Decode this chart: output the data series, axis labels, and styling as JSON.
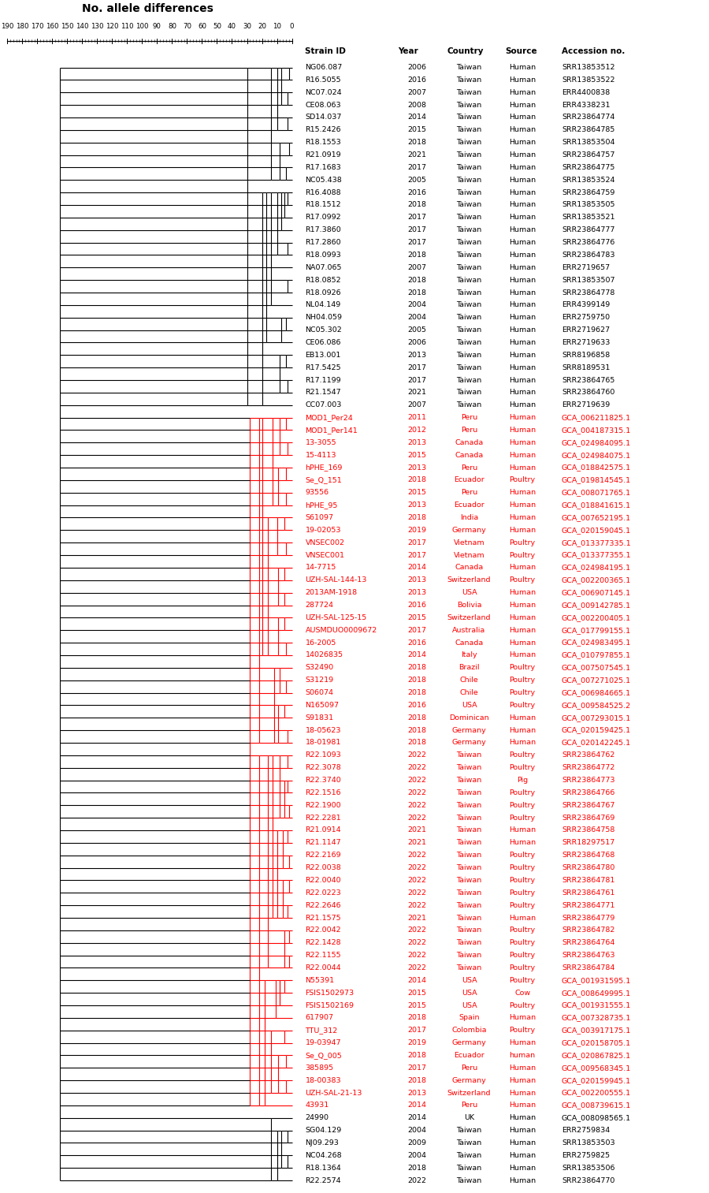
{
  "title": "No. allele differences",
  "scale_values": [
    190,
    180,
    170,
    160,
    150,
    140,
    130,
    120,
    110,
    100,
    90,
    80,
    70,
    60,
    50,
    40,
    30,
    20,
    10,
    0
  ],
  "col_headers": [
    "Strain ID",
    "Year",
    "Country",
    "Source",
    "Accession no."
  ],
  "strains": [
    {
      "id": "NG06.087",
      "year": "2006",
      "country": "Taiwan",
      "source": "Human",
      "accession": "SRR13853512",
      "red": false
    },
    {
      "id": "R16.5055",
      "year": "2016",
      "country": "Taiwan",
      "source": "Human",
      "accession": "SRR13853522",
      "red": false
    },
    {
      "id": "NC07.024",
      "year": "2007",
      "country": "Taiwan",
      "source": "Human",
      "accession": "ERR4400838",
      "red": false
    },
    {
      "id": "CE08.063",
      "year": "2008",
      "country": "Taiwan",
      "source": "Human",
      "accession": "ERR4338231",
      "red": false
    },
    {
      "id": "SD14.037",
      "year": "2014",
      "country": "Taiwan",
      "source": "Human",
      "accession": "SRR23864774",
      "red": false
    },
    {
      "id": "R15.2426",
      "year": "2015",
      "country": "Taiwan",
      "source": "Human",
      "accession": "SRR23864785",
      "red": false
    },
    {
      "id": "R18.1553",
      "year": "2018",
      "country": "Taiwan",
      "source": "Human",
      "accession": "SRR13853504",
      "red": false
    },
    {
      "id": "R21.0919",
      "year": "2021",
      "country": "Taiwan",
      "source": "Human",
      "accession": "SRR23864757",
      "red": false
    },
    {
      "id": "R17.1683",
      "year": "2017",
      "country": "Taiwan",
      "source": "Human",
      "accession": "SRR23864775",
      "red": false
    },
    {
      "id": "NC05.438",
      "year": "2005",
      "country": "Taiwan",
      "source": "Human",
      "accession": "SRR13853524",
      "red": false
    },
    {
      "id": "R16.4088",
      "year": "2016",
      "country": "Taiwan",
      "source": "Human",
      "accession": "SRR23864759",
      "red": false
    },
    {
      "id": "R18.1512",
      "year": "2018",
      "country": "Taiwan",
      "source": "Human",
      "accession": "SRR13853505",
      "red": false
    },
    {
      "id": "R17.0992",
      "year": "2017",
      "country": "Taiwan",
      "source": "Human",
      "accession": "SRR13853521",
      "red": false
    },
    {
      "id": "R17.3860",
      "year": "2017",
      "country": "Taiwan",
      "source": "Human",
      "accession": "SRR23864777",
      "red": false
    },
    {
      "id": "R17.2860",
      "year": "2017",
      "country": "Taiwan",
      "source": "Human",
      "accession": "SRR23864776",
      "red": false
    },
    {
      "id": "R18.0993",
      "year": "2018",
      "country": "Taiwan",
      "source": "Human",
      "accession": "SRR23864783",
      "red": false
    },
    {
      "id": "NA07.065",
      "year": "2007",
      "country": "Taiwan",
      "source": "Human",
      "accession": "ERR2719657",
      "red": false
    },
    {
      "id": "R18.0852",
      "year": "2018",
      "country": "Taiwan",
      "source": "Human",
      "accession": "SRR13853507",
      "red": false
    },
    {
      "id": "R18.0926",
      "year": "2018",
      "country": "Taiwan",
      "source": "Human",
      "accession": "SRR23864778",
      "red": false
    },
    {
      "id": "NL04.149",
      "year": "2004",
      "country": "Taiwan",
      "source": "Human",
      "accession": "ERR4399149",
      "red": false
    },
    {
      "id": "NH04.059",
      "year": "2004",
      "country": "Taiwan",
      "source": "Human",
      "accession": "ERR2759750",
      "red": false
    },
    {
      "id": "NC05.302",
      "year": "2005",
      "country": "Taiwan",
      "source": "Human",
      "accession": "ERR2719627",
      "red": false
    },
    {
      "id": "CE06.086",
      "year": "2006",
      "country": "Taiwan",
      "source": "Human",
      "accession": "ERR2719633",
      "red": false
    },
    {
      "id": "EB13.001",
      "year": "2013",
      "country": "Taiwan",
      "source": "Human",
      "accession": "SRR8196858",
      "red": false
    },
    {
      "id": "R17.5425",
      "year": "2017",
      "country": "Taiwan",
      "source": "Human",
      "accession": "SRR8189531",
      "red": false
    },
    {
      "id": "R17.1199",
      "year": "2017",
      "country": "Taiwan",
      "source": "Human",
      "accession": "SRR23864765",
      "red": false
    },
    {
      "id": "R21.1547",
      "year": "2021",
      "country": "Taiwan",
      "source": "Human",
      "accession": "SRR23864760",
      "red": false
    },
    {
      "id": "CC07.003",
      "year": "2007",
      "country": "Taiwan",
      "source": "Human",
      "accession": "ERR2719639",
      "red": false
    },
    {
      "id": "MOD1_Per24",
      "year": "2011",
      "country": "Peru",
      "source": "Human",
      "accession": "GCA_006211825.1",
      "red": true
    },
    {
      "id": "MOD1_Per141",
      "year": "2012",
      "country": "Peru",
      "source": "Human",
      "accession": "GCA_004187315.1",
      "red": true
    },
    {
      "id": "13-3055",
      "year": "2013",
      "country": "Canada",
      "source": "Human",
      "accession": "GCA_024984095.1",
      "red": true
    },
    {
      "id": "15-4113",
      "year": "2015",
      "country": "Canada",
      "source": "Human",
      "accession": "GCA_024984075.1",
      "red": true
    },
    {
      "id": "hPHE_169",
      "year": "2013",
      "country": "Peru",
      "source": "Human",
      "accession": "GCA_018842575.1",
      "red": true
    },
    {
      "id": "Se_Q_151",
      "year": "2018",
      "country": "Ecuador",
      "source": "Poultry",
      "accession": "GCA_019814545.1",
      "red": true
    },
    {
      "id": "93556",
      "year": "2015",
      "country": "Peru",
      "source": "Human",
      "accession": "GCA_008071765.1",
      "red": true
    },
    {
      "id": "hPHE_95",
      "year": "2013",
      "country": "Ecuador",
      "source": "Human",
      "accession": "GCA_018841615.1",
      "red": true
    },
    {
      "id": "S61097",
      "year": "2018",
      "country": "India",
      "source": "Human",
      "accession": "GCA_007652195.1",
      "red": true
    },
    {
      "id": "19-02053",
      "year": "2019",
      "country": "Germany",
      "source": "Human",
      "accession": "GCA_020159045.1",
      "red": true
    },
    {
      "id": "VNSEC002",
      "year": "2017",
      "country": "Vietnam",
      "source": "Poultry",
      "accession": "GCA_013377335.1",
      "red": true
    },
    {
      "id": "VNSEC001",
      "year": "2017",
      "country": "Vietnam",
      "source": "Poultry",
      "accession": "GCA_013377355.1",
      "red": true
    },
    {
      "id": "14-7715",
      "year": "2014",
      "country": "Canada",
      "source": "Human",
      "accession": "GCA_024984195.1",
      "red": true
    },
    {
      "id": "UZH-SAL-144-13",
      "year": "2013",
      "country": "Switzerland",
      "source": "Poultry",
      "accession": "GCA_002200365.1",
      "red": true
    },
    {
      "id": "2013AM-1918",
      "year": "2013",
      "country": "USA",
      "source": "Human",
      "accession": "GCA_006907145.1",
      "red": true
    },
    {
      "id": "287724",
      "year": "2016",
      "country": "Bolivia",
      "source": "Human",
      "accession": "GCA_009142785.1",
      "red": true
    },
    {
      "id": "UZH-SAL-125-15",
      "year": "2015",
      "country": "Switzerland",
      "source": "Human",
      "accession": "GCA_002200405.1",
      "red": true
    },
    {
      "id": "AUSMDUO0009672",
      "year": "2017",
      "country": "Australia",
      "source": "Human",
      "accession": "GCA_017799155.1",
      "red": true
    },
    {
      "id": "16-2005",
      "year": "2016",
      "country": "Canada",
      "source": "Human",
      "accession": "GCA_024983495.1",
      "red": true
    },
    {
      "id": "14026835",
      "year": "2014",
      "country": "Italy",
      "source": "Human",
      "accession": "GCA_010797855.1",
      "red": true
    },
    {
      "id": "S32490",
      "year": "2018",
      "country": "Brazil",
      "source": "Poultry",
      "accession": "GCA_007507545.1",
      "red": true
    },
    {
      "id": "S31219",
      "year": "2018",
      "country": "Chile",
      "source": "Poultry",
      "accession": "GCA_007271025.1",
      "red": true
    },
    {
      "id": "S06074",
      "year": "2018",
      "country": "Chile",
      "source": "Poultry",
      "accession": "GCA_006984665.1",
      "red": true
    },
    {
      "id": "N165097",
      "year": "2016",
      "country": "USA",
      "source": "Poultry",
      "accession": "GCA_009584525.2",
      "red": true
    },
    {
      "id": "S91831",
      "year": "2018",
      "country": "Dominican",
      "source": "Human",
      "accession": "GCA_007293015.1",
      "red": true
    },
    {
      "id": "18-05623",
      "year": "2018",
      "country": "Germany",
      "source": "Human",
      "accession": "GCA_020159425.1",
      "red": true
    },
    {
      "id": "18-01981",
      "year": "2018",
      "country": "Germany",
      "source": "Human",
      "accession": "GCA_020142245.1",
      "red": true
    },
    {
      "id": "R22.1093",
      "year": "2022",
      "country": "Taiwan",
      "source": "Poultry",
      "accession": "SRR23864762",
      "red": true
    },
    {
      "id": "R22.3078",
      "year": "2022",
      "country": "Taiwan",
      "source": "Poultry",
      "accession": "SRR23864772",
      "red": true
    },
    {
      "id": "R22.3740",
      "year": "2022",
      "country": "Taiwan",
      "source": "Pig",
      "accession": "SRR23864773",
      "red": true
    },
    {
      "id": "R22.1516",
      "year": "2022",
      "country": "Taiwan",
      "source": "Poultry",
      "accession": "SRR23864766",
      "red": true
    },
    {
      "id": "R22.1900",
      "year": "2022",
      "country": "Taiwan",
      "source": "Poultry",
      "accession": "SRR23864767",
      "red": true
    },
    {
      "id": "R22.2281",
      "year": "2022",
      "country": "Taiwan",
      "source": "Poultry",
      "accession": "SRR23864769",
      "red": true
    },
    {
      "id": "R21.0914",
      "year": "2021",
      "country": "Taiwan",
      "source": "Human",
      "accession": "SRR23864758",
      "red": true
    },
    {
      "id": "R21.1147",
      "year": "2021",
      "country": "Taiwan",
      "source": "Human",
      "accession": "SRR18297517",
      "red": true
    },
    {
      "id": "R22.2169",
      "year": "2022",
      "country": "Taiwan",
      "source": "Poultry",
      "accession": "SRR23864768",
      "red": true
    },
    {
      "id": "R22.0038",
      "year": "2022",
      "country": "Taiwan",
      "source": "Poultry",
      "accession": "SRR23864780",
      "red": true
    },
    {
      "id": "R22.0040",
      "year": "2022",
      "country": "Taiwan",
      "source": "Poultry",
      "accession": "SRR23864781",
      "red": true
    },
    {
      "id": "R22.0223",
      "year": "2022",
      "country": "Taiwan",
      "source": "Poultry",
      "accession": "SRR23864761",
      "red": true
    },
    {
      "id": "R22.2646",
      "year": "2022",
      "country": "Taiwan",
      "source": "Poultry",
      "accession": "SRR23864771",
      "red": true
    },
    {
      "id": "R21.1575",
      "year": "2021",
      "country": "Taiwan",
      "source": "Human",
      "accession": "SRR23864779",
      "red": true
    },
    {
      "id": "R22.0042",
      "year": "2022",
      "country": "Taiwan",
      "source": "Poultry",
      "accession": "SRR23864782",
      "red": true
    },
    {
      "id": "R22.1428",
      "year": "2022",
      "country": "Taiwan",
      "source": "Poultry",
      "accession": "SRR23864764",
      "red": true
    },
    {
      "id": "R22.1155",
      "year": "2022",
      "country": "Taiwan",
      "source": "Poultry",
      "accession": "SRR23864763",
      "red": true
    },
    {
      "id": "R22.0044",
      "year": "2022",
      "country": "Taiwan",
      "source": "Poultry",
      "accession": "SRR23864784",
      "red": true
    },
    {
      "id": "N55391",
      "year": "2014",
      "country": "USA",
      "source": "Poultry",
      "accession": "GCA_001931595.1",
      "red": true
    },
    {
      "id": "FSIS1502973",
      "year": "2015",
      "country": "USA",
      "source": "Cow",
      "accession": "GCA_008649995.1",
      "red": true
    },
    {
      "id": "FSIS1502169",
      "year": "2015",
      "country": "USA",
      "source": "Poultry",
      "accession": "GCA_001931555.1",
      "red": true
    },
    {
      "id": "617907",
      "year": "2018",
      "country": "Spain",
      "source": "Human",
      "accession": "GCA_007328735.1",
      "red": true
    },
    {
      "id": "TTU_312",
      "year": "2017",
      "country": "Colombia",
      "source": "Poultry",
      "accession": "GCA_003917175.1",
      "red": true
    },
    {
      "id": "19-03947",
      "year": "2019",
      "country": "Germany",
      "source": "Human",
      "accession": "GCA_020158705.1",
      "red": true
    },
    {
      "id": "Se_Q_005",
      "year": "2018",
      "country": "Ecuador",
      "source": "human",
      "accession": "GCA_020867825.1",
      "red": true
    },
    {
      "id": "385895",
      "year": "2017",
      "country": "Peru",
      "source": "Human",
      "accession": "GCA_009568345.1",
      "red": true
    },
    {
      "id": "18-00383",
      "year": "2018",
      "country": "Germany",
      "source": "Human",
      "accession": "GCA_020159945.1",
      "red": true
    },
    {
      "id": "UZH-SAL-21-13",
      "year": "2013",
      "country": "Switzerland",
      "source": "Human",
      "accession": "GCA_002200555.1",
      "red": true
    },
    {
      "id": "43931",
      "year": "2014",
      "country": "Peru",
      "source": "Human",
      "accession": "GCA_008739615.1",
      "red": true
    },
    {
      "id": "24990",
      "year": "2014",
      "country": "UK",
      "source": "Human",
      "accession": "GCA_008098565.1",
      "red": false
    },
    {
      "id": "SG04.129",
      "year": "2004",
      "country": "Taiwan",
      "source": "Human",
      "accession": "ERR2759834",
      "red": false
    },
    {
      "id": "NJ09.293",
      "year": "2009",
      "country": "Taiwan",
      "source": "Human",
      "accession": "SRR13853503",
      "red": false
    },
    {
      "id": "NC04.268",
      "year": "2004",
      "country": "Taiwan",
      "source": "Human",
      "accession": "ERR2759825",
      "red": false
    },
    {
      "id": "R18.1364",
      "year": "2018",
      "country": "Taiwan",
      "source": "Human",
      "accession": "SRR13853506",
      "red": false
    },
    {
      "id": "R22.2574",
      "year": "2022",
      "country": "Taiwan",
      "source": "Human",
      "accession": "SRR23864770",
      "red": false
    }
  ]
}
